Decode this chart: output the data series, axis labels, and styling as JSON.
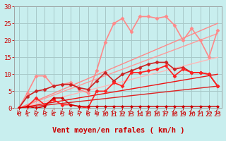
{
  "background_color": "#c8eeee",
  "grid_color": "#a8c8c8",
  "xlabel": "Vent moyen/en rafales ( km/h )",
  "xlim": [
    -0.5,
    23.5
  ],
  "ylim": [
    0,
    30
  ],
  "yticks": [
    0,
    5,
    10,
    15,
    20,
    25,
    30
  ],
  "xticks": [
    0,
    1,
    2,
    3,
    4,
    5,
    6,
    7,
    8,
    9,
    10,
    11,
    12,
    13,
    14,
    15,
    16,
    17,
    18,
    19,
    20,
    21,
    22,
    23
  ],
  "lines": [
    {
      "x": [
        0,
        23
      ],
      "y": [
        0,
        15.0
      ],
      "color": "#ffb8b8",
      "lw": 1.0,
      "marker": null
    },
    {
      "x": [
        0,
        23
      ],
      "y": [
        0,
        22.0
      ],
      "color": "#ff9999",
      "lw": 1.0,
      "marker": null
    },
    {
      "x": [
        0,
        23
      ],
      "y": [
        0,
        25.0
      ],
      "color": "#ff8888",
      "lw": 1.0,
      "marker": null
    },
    {
      "x": [
        0,
        23
      ],
      "y": [
        0,
        6.5
      ],
      "color": "#dd2222",
      "lw": 1.0,
      "marker": null
    },
    {
      "x": [
        0,
        23
      ],
      "y": [
        0,
        10.0
      ],
      "color": "#ee1111",
      "lw": 1.0,
      "marker": null
    },
    {
      "x": [
        0,
        1,
        2,
        3,
        4,
        5,
        6,
        7,
        8,
        9,
        10,
        11,
        12,
        13,
        14,
        15,
        16,
        17,
        18,
        19,
        20,
        21,
        22,
        23
      ],
      "y": [
        0.0,
        4.5,
        9.5,
        9.5,
        6.5,
        7.0,
        7.5,
        5.5,
        4.5,
        11.0,
        19.5,
        25.0,
        26.5,
        22.5,
        27.0,
        27.0,
        26.5,
        27.0,
        24.5,
        20.0,
        23.5,
        20.0,
        15.0,
        23.0
      ],
      "color": "#ff8888",
      "lw": 1.2,
      "marker": "D",
      "markersize": 2.5
    },
    {
      "x": [
        0,
        1,
        2,
        3,
        4,
        5,
        6,
        7,
        8,
        9,
        10,
        11,
        12,
        13,
        14,
        15,
        16,
        17,
        18,
        19,
        20,
        21,
        22,
        23
      ],
      "y": [
        0.0,
        3.5,
        5.0,
        5.5,
        6.5,
        7.0,
        7.0,
        6.0,
        5.5,
        8.0,
        10.5,
        8.0,
        10.0,
        11.0,
        12.0,
        13.0,
        13.5,
        13.5,
        11.5,
        12.0,
        10.5,
        10.5,
        10.0,
        6.5
      ],
      "color": "#cc2222",
      "lw": 1.2,
      "marker": "D",
      "markersize": 2.5
    },
    {
      "x": [
        0,
        1,
        2,
        3,
        4,
        5,
        6,
        7,
        8,
        9,
        10,
        11,
        12,
        13,
        14,
        15,
        16,
        17,
        18,
        19,
        20,
        21,
        22,
        23
      ],
      "y": [
        0.0,
        0.5,
        3.0,
        1.0,
        2.5,
        1.0,
        1.0,
        0.5,
        0.0,
        5.0,
        5.0,
        7.5,
        6.5,
        10.5,
        10.5,
        11.0,
        11.5,
        12.5,
        9.5,
        11.5,
        10.5,
        10.5,
        10.0,
        6.5
      ],
      "color": "#ff2222",
      "lw": 1.2,
      "marker": "D",
      "markersize": 2.5
    },
    {
      "x": [
        0,
        1,
        2,
        3,
        4,
        5,
        6,
        7,
        8,
        9,
        10,
        11,
        12,
        13,
        14,
        15,
        16,
        17,
        18,
        19,
        20,
        21,
        22,
        23
      ],
      "y": [
        0.0,
        0.5,
        0.0,
        0.5,
        3.0,
        3.0,
        1.0,
        0.5,
        0.5,
        0.5,
        0.5,
        0.5,
        0.5,
        0.5,
        0.5,
        0.5,
        0.5,
        0.5,
        0.5,
        0.5,
        0.5,
        0.5,
        0.5,
        0.5
      ],
      "color": "#cc0000",
      "lw": 1.0,
      "marker": "D",
      "markersize": 2.0
    }
  ],
  "arrow_color": "#cc2222",
  "xlabel_color": "#cc0000",
  "xlabel_fontsize": 7.5,
  "tick_color": "#cc0000",
  "tick_fontsize": 6.5
}
